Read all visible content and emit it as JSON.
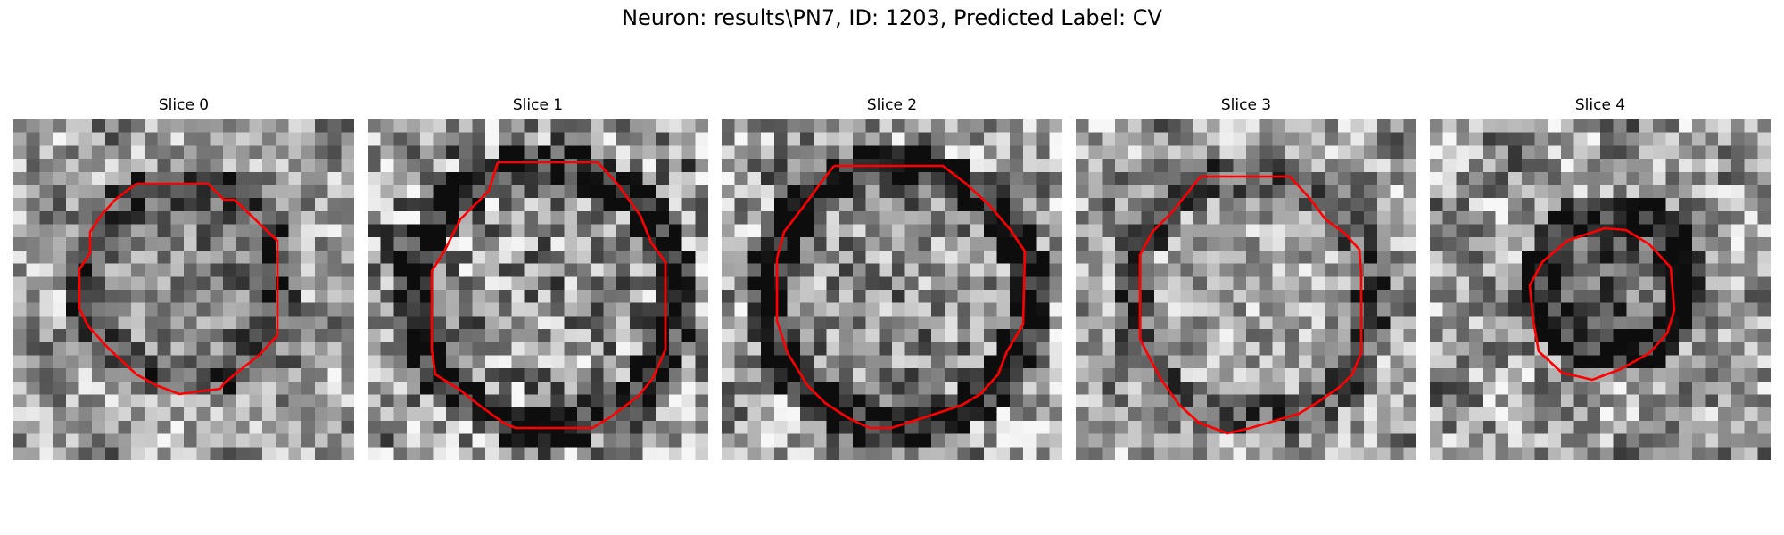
{
  "title": "Neuron: results\\PN7, ID: 1203, Predicted Label: CV",
  "colors": {
    "contour": "#ff0000",
    "image_colormap": "grayscale"
  },
  "slices": [
    {
      "label": "Slice 0"
    },
    {
      "label": "Slice 1"
    },
    {
      "label": "Slice 2"
    },
    {
      "label": "Slice 3"
    },
    {
      "label": "Slice 4"
    }
  ]
}
